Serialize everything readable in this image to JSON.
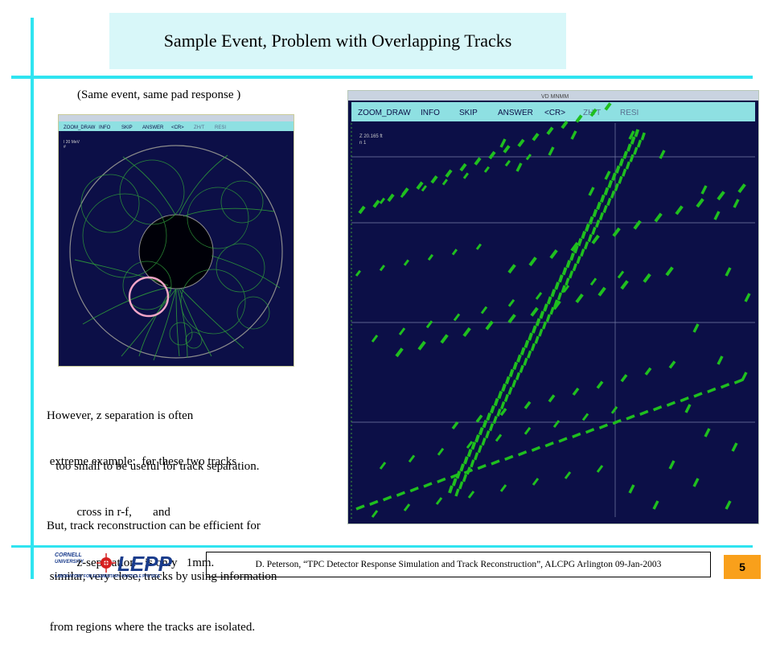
{
  "slide": {
    "title": "Sample Event, Problem with Overlapping Tracks",
    "subtitle": "(Same event, same pad response )",
    "page_number": "5"
  },
  "small_display": {
    "menu": [
      "ZOOM_DRAW",
      "INFO",
      "SKIP",
      "ANSWER",
      "<CR>",
      "ZH/T",
      "RESI"
    ],
    "header_text": "20 MeV",
    "info_lines": [
      "I 20 MeV",
      "#"
    ]
  },
  "big_display": {
    "window_title": "VD MNMM",
    "menu": [
      "ZOOM_DRAW",
      "INFO",
      "SKIP",
      "ANSWER",
      "<CR>",
      "ZH/T",
      "RESI"
    ],
    "info_lines": [
      "Z    20.165 ft",
      "n       1"
    ]
  },
  "text": {
    "para1": [
      "However, z separation is often",
      "   too small to be useful for track separation."
    ],
    "para2": [
      " extreme example:  for these two tracks",
      "          cross in r-f,       and",
      "          z-separation   is only   1mm."
    ],
    "para3": [
      "But, track reconstruction can be efficient for",
      " similar, very close, tracks by using information",
      " from regions where the tracks are isolated."
    ]
  },
  "footer": {
    "citation": "D. Peterson, “TPC Detector Response Simulation and Track Reconstruction”, ALCPG Arlington 09-Jan-2003",
    "logo_top": "CORNELL",
    "logo_mid": "UNIVERSITY",
    "logo_name": "LEPP",
    "logo_sub": "LABORATORY FOR ELEMENTARY-PARTICLE PHYSICS"
  },
  "colors": {
    "accent_line": "#2fe4f0",
    "title_bg": "#d8f7f9",
    "page_box": "#f9a01b",
    "display_bg": "#0c0f47",
    "display_menu": "#8ee0e2",
    "track_green": "#1fbf1f",
    "highlight_circle": "#f4a6c8"
  }
}
